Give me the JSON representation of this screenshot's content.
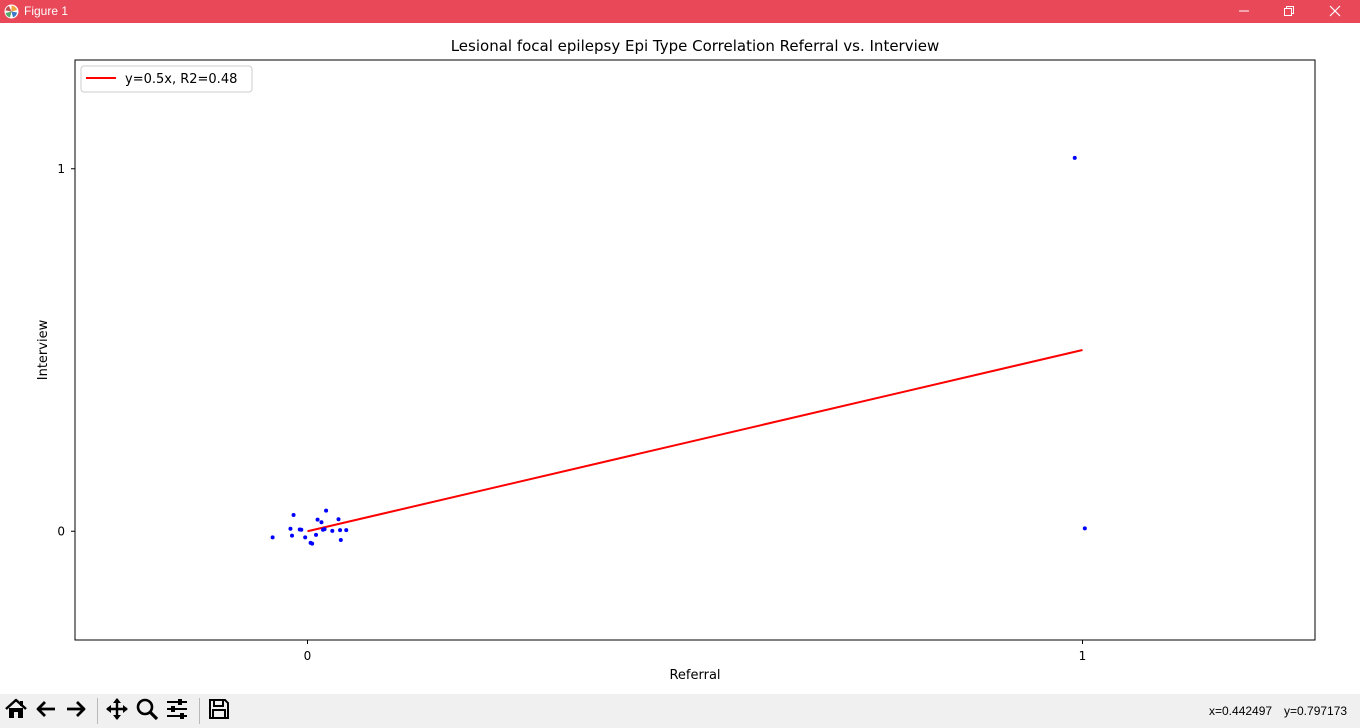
{
  "window": {
    "title": "Figure 1",
    "icons": [
      "matplotlib-icon",
      "minimize-icon",
      "maximize-icon",
      "close-icon"
    ]
  },
  "toolbar": {
    "buttons": [
      "home-icon",
      "back-icon",
      "forward-icon",
      "pan-icon",
      "zoom-icon",
      "configure-subplots-icon",
      "save-icon"
    ],
    "x_readout": "x=0.442497",
    "y_readout": "y=0.797173"
  },
  "chart_data": {
    "type": "scatter",
    "title": "Lesional focal epilepsy Epi Type Correlation Referral vs. Interview",
    "xlabel": "Referral",
    "ylabel": "Interview",
    "xlim": [
      -0.3,
      1.3
    ],
    "ylim": [
      -0.3,
      1.3
    ],
    "xticks": [
      0,
      1
    ],
    "yticks": [
      0,
      1
    ],
    "xtick_labels": [
      "0",
      "1"
    ],
    "ytick_labels": [
      "0",
      "1"
    ],
    "grid": false,
    "legend": {
      "placement": "upper-left",
      "entries": [
        "y=0.5x, R2=0.48"
      ]
    },
    "series": [
      {
        "name": "y=0.5x, R2=0.48",
        "kind": "line",
        "color": "#ff0000",
        "x": [
          0,
          1
        ],
        "y": [
          0,
          0.5
        ]
      },
      {
        "kind": "scatter",
        "color": "#0000ff",
        "x": [
          -0.045,
          -0.018,
          -0.022,
          -0.02,
          -0.01,
          -0.008,
          -0.003,
          0.004,
          0.006,
          0.011,
          0.013,
          0.018,
          0.02,
          0.022,
          0.024,
          0.032,
          0.04,
          0.042,
          0.043,
          0.05,
          0.99,
          1.003
        ],
        "y": [
          -0.017,
          0.045,
          0.007,
          -0.012,
          0.005,
          0.004,
          -0.017,
          -0.032,
          -0.034,
          -0.01,
          0.032,
          0.025,
          0.004,
          0.006,
          0.057,
          0.001,
          0.033,
          0.003,
          -0.024,
          0.003,
          1.03,
          0.008
        ]
      }
    ]
  }
}
